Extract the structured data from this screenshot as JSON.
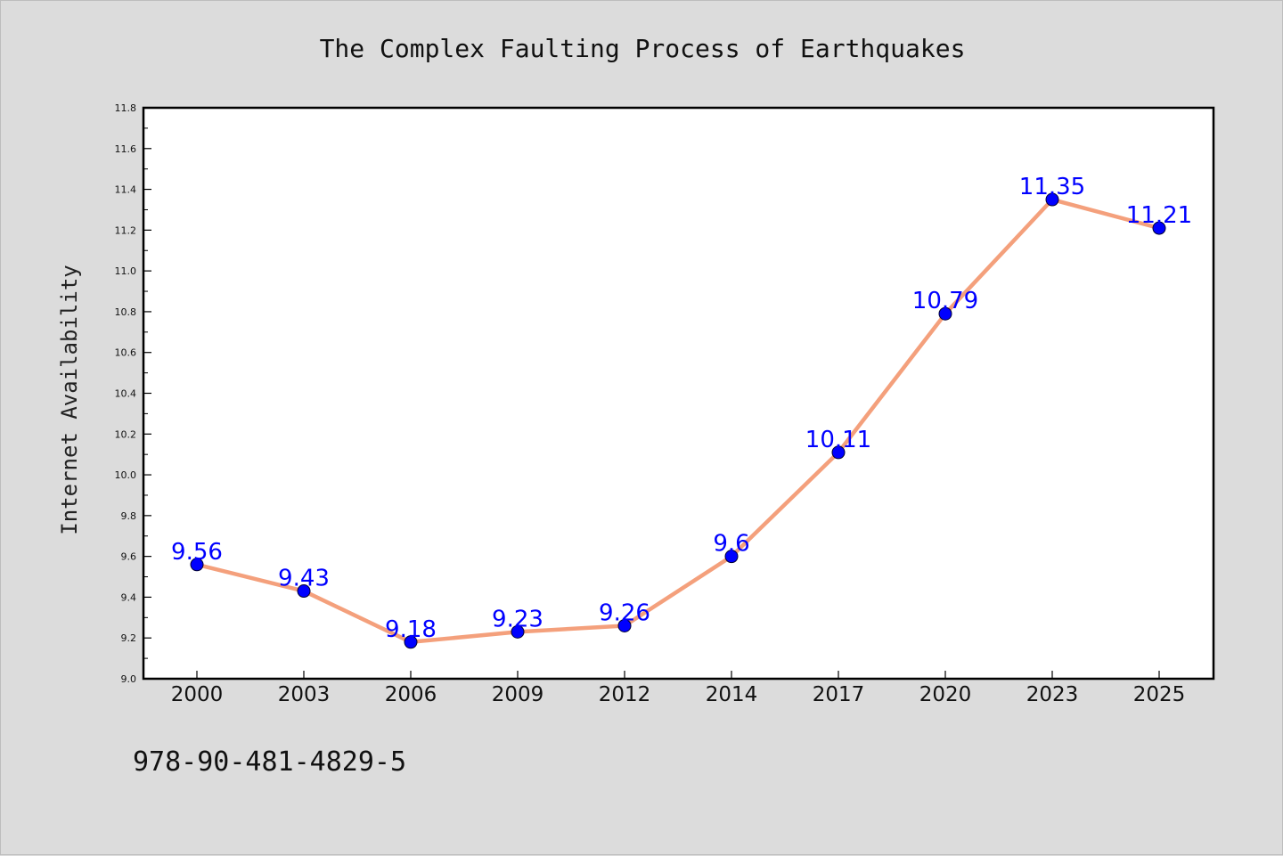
{
  "footer_code": "978-90-481-4829-5",
  "chart_data": {
    "type": "line",
    "title": "The Complex Faulting Process of Earthquakes",
    "xlabel": "",
    "ylabel": "Internet Availability",
    "categories": [
      "2000",
      "2003",
      "2006",
      "2009",
      "2012",
      "2014",
      "2017",
      "2020",
      "2023",
      "2025"
    ],
    "series": [
      {
        "values": [
          9.56,
          9.43,
          9.18,
          9.23,
          9.26,
          9.6,
          10.11,
          10.79,
          11.35,
          11.21
        ],
        "data_labels": [
          "9.56",
          "9.43",
          "9.18",
          "9.23",
          "9.26",
          "9.6",
          "10.11",
          "10.79",
          "11.35",
          "11.21"
        ],
        "line_color": "#f4a07c",
        "marker_color": "#0000ff"
      }
    ],
    "ylim": [
      9.0,
      11.8
    ],
    "yticks": [
      "9.0",
      "9.2",
      "9.4",
      "9.6",
      "9.8",
      "10.0",
      "10.2",
      "10.4",
      "10.6",
      "10.8",
      "11.0",
      "11.2",
      "11.4",
      "11.6",
      "11.8"
    ],
    "grid": false,
    "legend": "none",
    "background_color": "#dcdcdc",
    "plot_background_color": "#ffffff"
  }
}
